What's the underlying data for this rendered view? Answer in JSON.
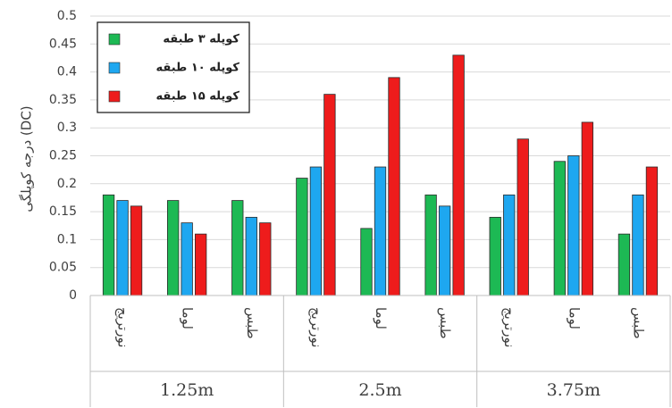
{
  "chart_data": {
    "type": "bar",
    "ylabel": "درجه کوپلگی (DC)",
    "ylim": [
      0,
      0.5
    ],
    "yticks": [
      "0",
      "0.05",
      "0.1",
      "0.15",
      "0.2",
      "0.25",
      "0.3",
      "0.35",
      "0.4",
      "0.45",
      "0.5"
    ],
    "grid": true,
    "legend_position": "top-left",
    "groups": [
      {
        "label": "1.25m",
        "categories": [
          "نورتریج",
          "لوما",
          "طبس"
        ]
      },
      {
        "label": "2.5m",
        "categories": [
          "نورتریج",
          "لوما",
          "طبس"
        ]
      },
      {
        "label": "3.75m",
        "categories": [
          "نورتریج",
          "لوما",
          "طبس"
        ]
      }
    ],
    "series": [
      {
        "name": "کوپله ۳ طبقه",
        "color": "#1db954",
        "values": [
          0.18,
          0.17,
          0.17,
          0.21,
          0.12,
          0.18,
          0.14,
          0.24,
          0.11
        ]
      },
      {
        "name": "کوپله ۱۰ طبقه",
        "color": "#1ea7f0",
        "values": [
          0.17,
          0.13,
          0.14,
          0.23,
          0.23,
          0.16,
          0.18,
          0.25,
          0.18
        ]
      },
      {
        "name": "کوپله ۱۵ طبقه",
        "color": "#ee1c1c",
        "values": [
          0.16,
          0.11,
          0.13,
          0.36,
          0.39,
          0.43,
          0.28,
          0.31,
          0.23
        ]
      }
    ]
  }
}
